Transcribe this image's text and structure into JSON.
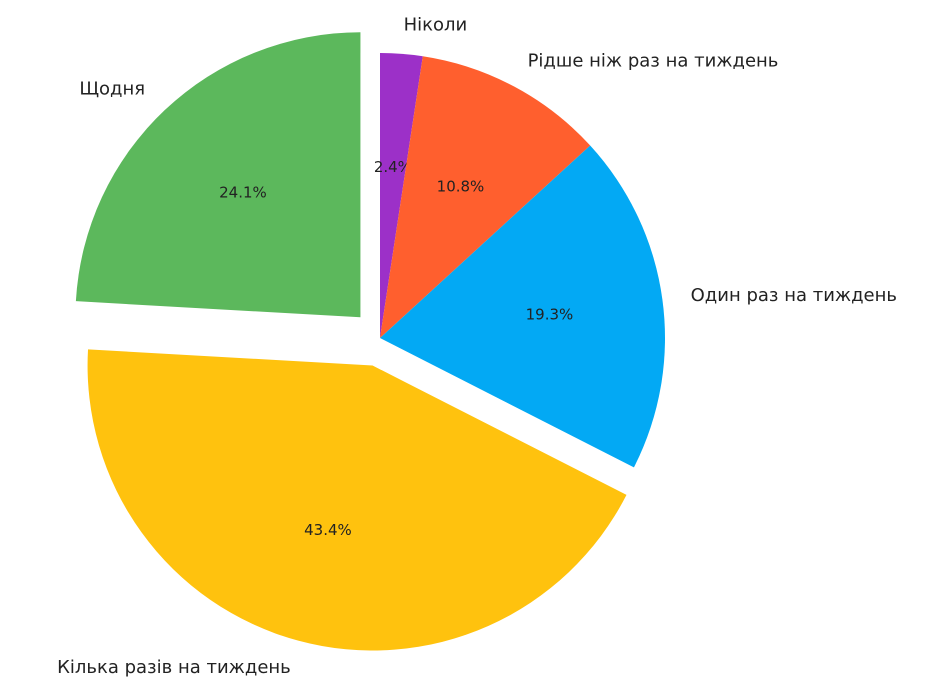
{
  "chart_data": {
    "type": "pie",
    "categories": [
      "Ніколи",
      "Рідше ніж раз на тиждень",
      "Один раз на тиждень",
      "Кілька разів на тиждень",
      "Щодня"
    ],
    "values": [
      2.4,
      10.8,
      19.3,
      43.4,
      24.1
    ],
    "value_labels": [
      "2.4%",
      "10.8%",
      "19.3%",
      "43.4%",
      "24.1%"
    ],
    "colors": [
      "#9c30c8",
      "#ff5f2e",
      "#03a9f4",
      "#ffc20e",
      "#5cb85c"
    ],
    "explode": [
      0,
      0,
      0,
      0.1,
      0.1
    ]
  }
}
